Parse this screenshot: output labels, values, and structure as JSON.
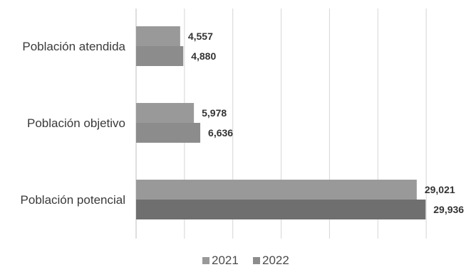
{
  "chart_data": {
    "type": "bar",
    "orientation": "horizontal",
    "categories": [
      "Población atendida",
      "Población objetivo",
      "Población potencial"
    ],
    "series": [
      {
        "name": "2021",
        "values": [
          4557,
          5978,
          29021
        ],
        "color": "#999999"
      },
      {
        "name": "2022",
        "values": [
          4880,
          6636,
          29936
        ],
        "color": "#8c8c8c"
      }
    ],
    "data_labels": {
      "2021": [
        "4,557",
        "5,978",
        "29,021"
      ],
      "2022": [
        "4,880",
        "6,636",
        "29,936"
      ]
    },
    "special_colors": {
      "Población potencial-2022": "#6f6f6f"
    },
    "xlim": [
      0,
      35000
    ],
    "grid": true,
    "legend": "bottom",
    "title": "",
    "xlabel": "",
    "ylabel": ""
  }
}
